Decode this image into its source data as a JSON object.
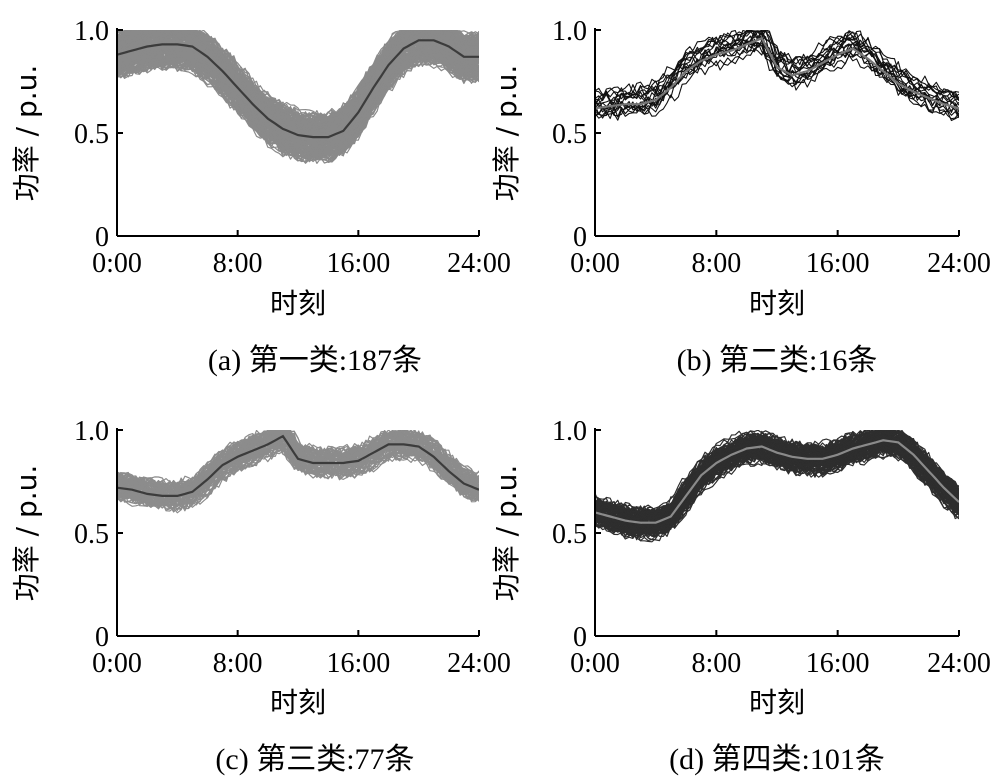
{
  "chart_data": [
    {
      "type": "line",
      "caption": "(a)  第一类:187条",
      "xlabel": "时刻",
      "ylabel": "功率 / p.u.",
      "x_ticks": [
        "0:00",
        "8:00",
        "16:00",
        "24:00"
      ],
      "y_ticks": [
        "0",
        "0.5",
        "1.0"
      ],
      "xlim": [
        0,
        24
      ],
      "ylim": [
        0,
        1
      ],
      "curve_count": 187,
      "colors": {
        "band": "#8a8a8a",
        "center": "#3c3c3c"
      },
      "series": [
        {
          "x": [
            0,
            1,
            2,
            3,
            4,
            5,
            6,
            7,
            8,
            9,
            10,
            11,
            12,
            13,
            14,
            15,
            16,
            17,
            18,
            19,
            20,
            21,
            22,
            23,
            24
          ],
          "values": [
            0.88,
            0.9,
            0.92,
            0.93,
            0.93,
            0.92,
            0.87,
            0.8,
            0.72,
            0.64,
            0.57,
            0.52,
            0.49,
            0.48,
            0.48,
            0.51,
            0.6,
            0.72,
            0.83,
            0.91,
            0.95,
            0.95,
            0.92,
            0.87,
            0.87
          ]
        }
      ]
    },
    {
      "type": "line",
      "caption": "(b)  第二类:16条",
      "xlabel": "时刻",
      "ylabel": "功率 / p.u.",
      "x_ticks": [
        "0:00",
        "8:00",
        "16:00",
        "24:00"
      ],
      "y_ticks": [
        "0",
        "0.5",
        "1.0"
      ],
      "xlim": [
        0,
        24
      ],
      "ylim": [
        0,
        1
      ],
      "curve_count": 16,
      "colors": {
        "band": "#111111",
        "center": "#777777"
      },
      "series": [
        {
          "x": [
            0,
            1,
            2,
            3,
            4,
            5,
            6,
            7,
            8,
            9,
            10,
            11,
            12,
            13,
            14,
            15,
            16,
            17,
            18,
            19,
            20,
            21,
            22,
            23,
            24
          ],
          "values": [
            0.62,
            0.63,
            0.64,
            0.64,
            0.66,
            0.72,
            0.8,
            0.85,
            0.88,
            0.9,
            0.93,
            0.96,
            0.82,
            0.78,
            0.8,
            0.84,
            0.88,
            0.91,
            0.86,
            0.8,
            0.74,
            0.7,
            0.67,
            0.64,
            0.62
          ]
        }
      ]
    },
    {
      "type": "line",
      "caption": "(c)  第三类:77条",
      "xlabel": "时刻",
      "ylabel": "功率 / p.u.",
      "x_ticks": [
        "0:00",
        "8:00",
        "16:00",
        "24:00"
      ],
      "y_ticks": [
        "0",
        "0.5",
        "1.0"
      ],
      "xlim": [
        0,
        24
      ],
      "ylim": [
        0,
        1
      ],
      "curve_count": 77,
      "colors": {
        "band": "#8c8c8c",
        "center": "#3c3c3c"
      },
      "series": [
        {
          "x": [
            0,
            1,
            2,
            3,
            4,
            5,
            6,
            7,
            8,
            9,
            10,
            11,
            12,
            13,
            14,
            15,
            16,
            17,
            18,
            19,
            20,
            21,
            22,
            23,
            24
          ],
          "values": [
            0.72,
            0.71,
            0.69,
            0.68,
            0.68,
            0.7,
            0.76,
            0.83,
            0.87,
            0.9,
            0.93,
            0.97,
            0.86,
            0.84,
            0.84,
            0.84,
            0.85,
            0.89,
            0.93,
            0.93,
            0.92,
            0.87,
            0.8,
            0.74,
            0.71
          ]
        }
      ]
    },
    {
      "type": "line",
      "caption": "(d)  第四类:101条",
      "xlabel": "时刻",
      "ylabel": "功率 / p.u.",
      "x_ticks": [
        "0:00",
        "8:00",
        "16:00",
        "24:00"
      ],
      "y_ticks": [
        "0",
        "0.5",
        "1.0"
      ],
      "xlim": [
        0,
        24
      ],
      "ylim": [
        0,
        1
      ],
      "curve_count": 101,
      "colors": {
        "band": "#2e2e2e",
        "center": "#8a8a8a"
      },
      "series": [
        {
          "x": [
            0,
            1,
            2,
            3,
            4,
            5,
            6,
            7,
            8,
            9,
            10,
            11,
            12,
            13,
            14,
            15,
            16,
            17,
            18,
            19,
            20,
            21,
            22,
            23,
            24
          ],
          "values": [
            0.6,
            0.58,
            0.56,
            0.55,
            0.55,
            0.58,
            0.68,
            0.78,
            0.84,
            0.88,
            0.91,
            0.92,
            0.89,
            0.87,
            0.86,
            0.86,
            0.88,
            0.91,
            0.93,
            0.95,
            0.94,
            0.88,
            0.8,
            0.72,
            0.65
          ]
        }
      ]
    }
  ]
}
